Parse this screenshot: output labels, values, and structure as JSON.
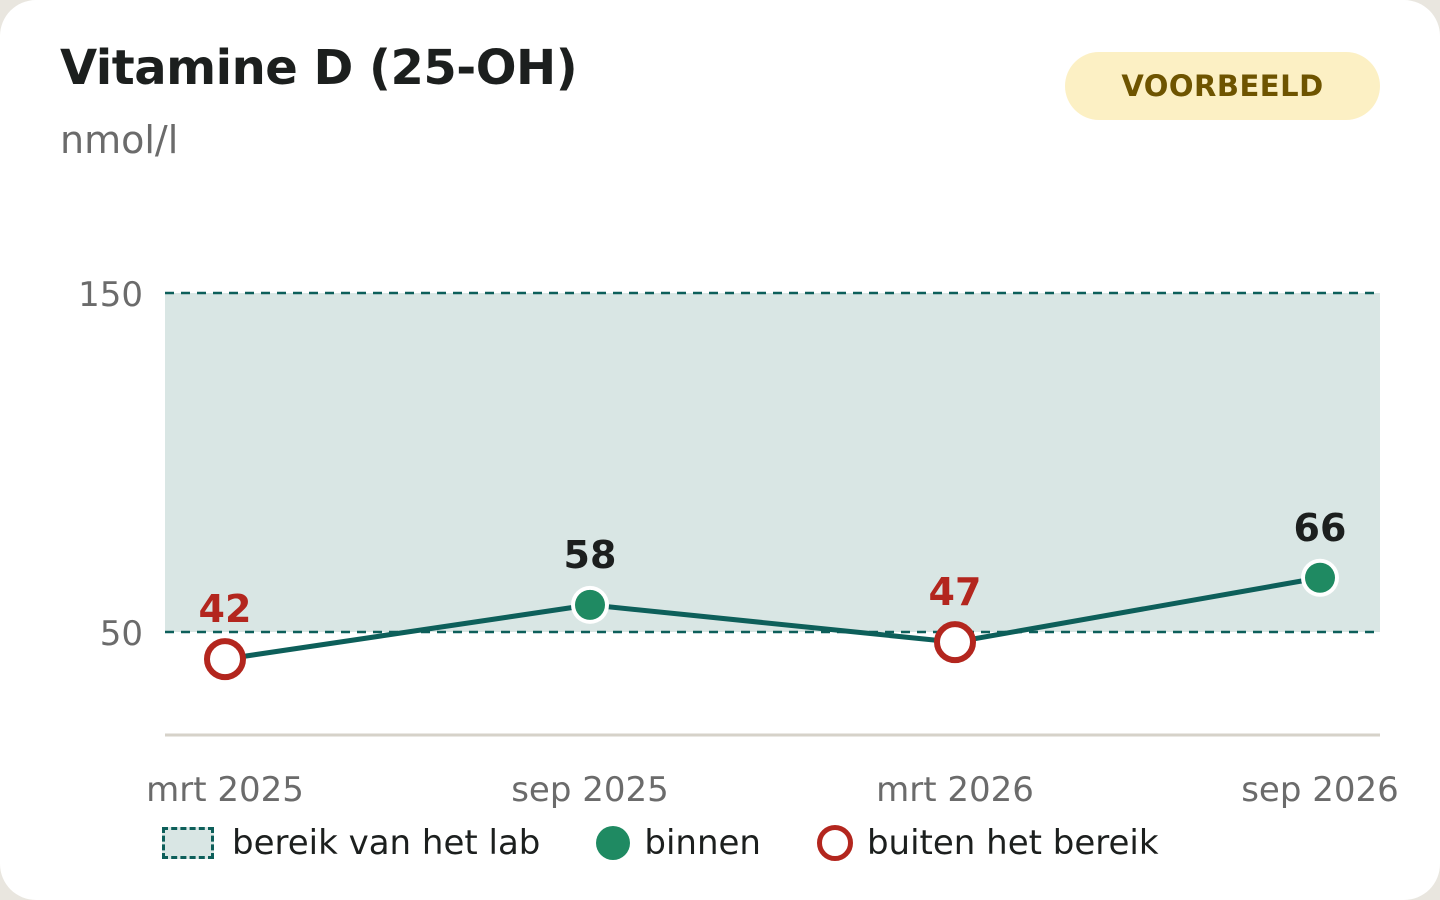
{
  "header": {
    "title": "Vitamine D (25-OH)",
    "unit": "nmol/l",
    "badge": "VOORBEELD"
  },
  "colors": {
    "range_fill": "#d9e6e4",
    "range_line": "#0d5f5a",
    "line": "#0d5f5a",
    "in_range": "#1f8a62",
    "out_of_range": "#b3261e",
    "label_in": "#1c1f1e",
    "axis": "#6b6b6b"
  },
  "chart_data": {
    "type": "line",
    "title": "Vitamine D (25-OH)",
    "ylabel": "nmol/l",
    "categories": [
      "mrt 2025",
      "sep 2025",
      "mrt 2026",
      "sep 2026"
    ],
    "values": [
      42,
      58,
      47,
      66
    ],
    "status": [
      "buiten",
      "binnen",
      "buiten",
      "binnen"
    ],
    "data_labels": [
      "42",
      "58",
      "47",
      "66"
    ],
    "reference_range": [
      50,
      150
    ],
    "yticks": [
      50,
      150
    ],
    "ytick_labels": [
      "50",
      "150"
    ],
    "ylim": [
      20,
      150
    ],
    "grid": false,
    "legend_position": "bottom"
  },
  "legend": {
    "range": "bereik van het lab",
    "in": "binnen",
    "out": "buiten het bereik"
  }
}
